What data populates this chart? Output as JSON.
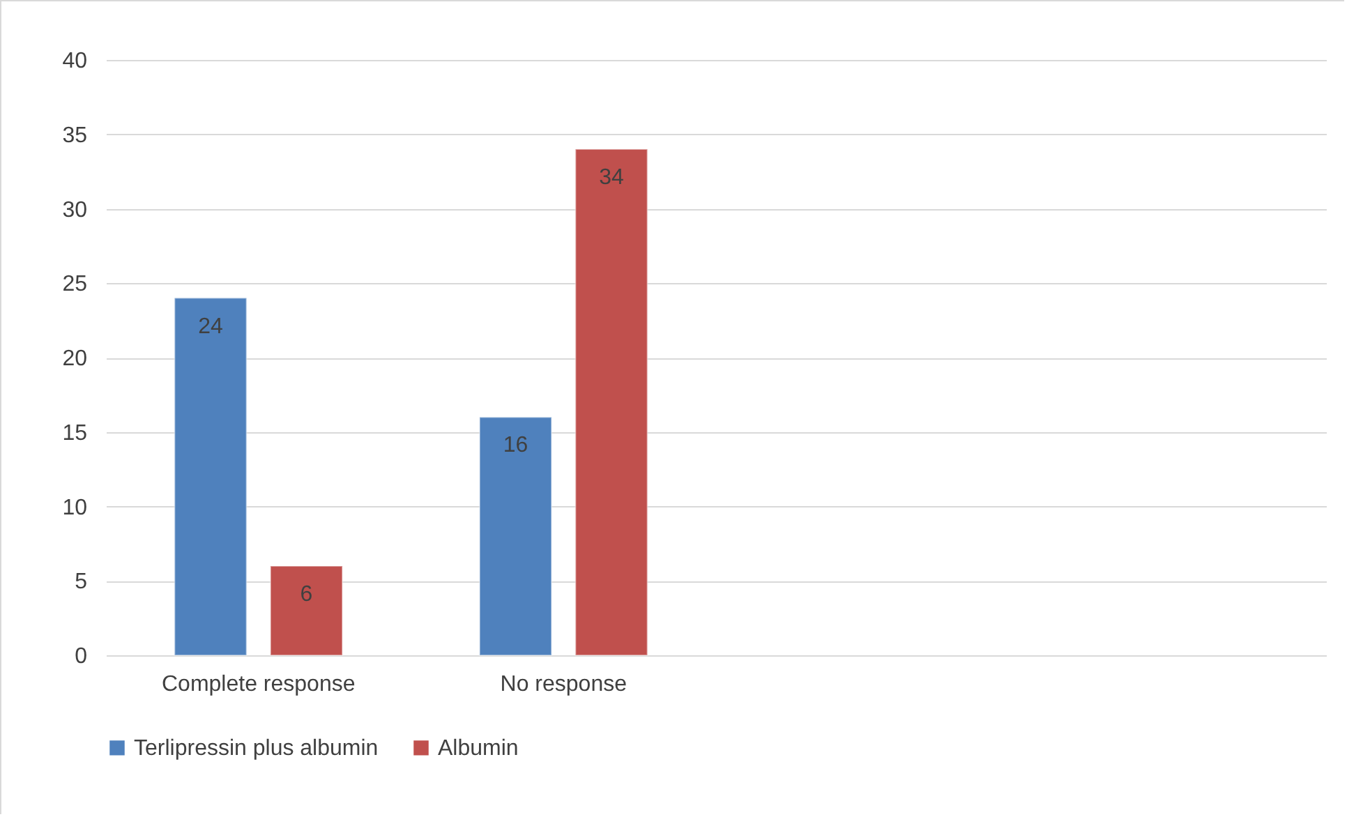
{
  "chart_data": {
    "type": "bar",
    "categories": [
      "Complete response",
      "No response",
      null,
      null
    ],
    "series": [
      {
        "name": "Terlipressin plus albumin",
        "color": "#4f81bd",
        "values": [
          24,
          16,
          null,
          null
        ]
      },
      {
        "name": "Albumin",
        "color": "#c0504d",
        "values": [
          6,
          34,
          null,
          null
        ]
      }
    ],
    "ylim": [
      0,
      40
    ],
    "yticks": [
      0,
      5,
      10,
      15,
      20,
      25,
      30,
      35,
      40
    ],
    "grid": "y",
    "legend": "bottom",
    "data_labels": true
  }
}
